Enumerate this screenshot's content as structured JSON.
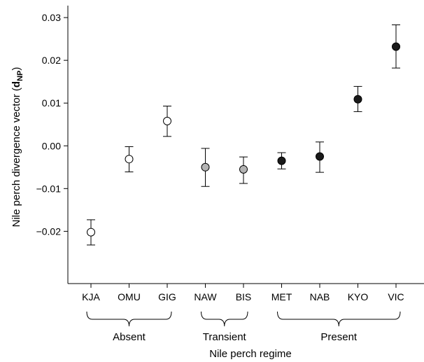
{
  "chart_data": {
    "type": "scatter",
    "xlabel": "Nile perch regime",
    "ylabel": {
      "prefix": "Nile perch divergence vector (",
      "symbol": "d",
      "subscript": "NP",
      "suffix": ")"
    },
    "ylim": [
      -0.026,
      0.031
    ],
    "yticks": [
      -0.02,
      -0.01,
      0.0,
      0.01,
      0.02,
      0.03
    ],
    "ytick_labels": [
      "−0.02",
      "−0.01",
      "0.00",
      "0.01",
      "0.02",
      "0.03"
    ],
    "grid": false,
    "legend": "none",
    "categories": [
      "KJA",
      "OMU",
      "GIG",
      "NAW",
      "BIS",
      "MET",
      "NAB",
      "KYO",
      "VIC"
    ],
    "points": [
      {
        "category": "KJA",
        "value": -0.0202,
        "lower": -0.0232,
        "upper": -0.0173,
        "regime": "absent"
      },
      {
        "category": "OMU",
        "value": -0.0031,
        "lower": -0.0061,
        "upper": -0.0002,
        "regime": "absent"
      },
      {
        "category": "GIG",
        "value": 0.0058,
        "lower": 0.0022,
        "upper": 0.0093,
        "regime": "absent"
      },
      {
        "category": "NAW",
        "value": -0.005,
        "lower": -0.0095,
        "upper": -0.0006,
        "regime": "transient"
      },
      {
        "category": "BIS",
        "value": -0.0055,
        "lower": -0.0088,
        "upper": -0.0026,
        "regime": "transient"
      },
      {
        "category": "MET",
        "value": -0.0035,
        "lower": -0.0054,
        "upper": -0.0016,
        "regime": "present"
      },
      {
        "category": "NAB",
        "value": -0.0025,
        "lower": -0.0062,
        "upper": 0.0009,
        "regime": "present"
      },
      {
        "category": "KYO",
        "value": 0.0109,
        "lower": 0.008,
        "upper": 0.0139,
        "regime": "present"
      },
      {
        "category": "VIC",
        "value": 0.0232,
        "lower": 0.0182,
        "upper": 0.0283,
        "regime": "present"
      }
    ],
    "groups": [
      {
        "label": "Absent",
        "from": "KJA",
        "to": "GIG"
      },
      {
        "label": "Transient",
        "from": "NAW",
        "to": "BIS"
      },
      {
        "label": "Present",
        "from": "MET",
        "to": "VIC"
      }
    ],
    "marker_fill": {
      "absent": "#ffffff",
      "transient": "#b3b3b3",
      "present": "#1a1a1a"
    },
    "marker_stroke": "#000000"
  }
}
